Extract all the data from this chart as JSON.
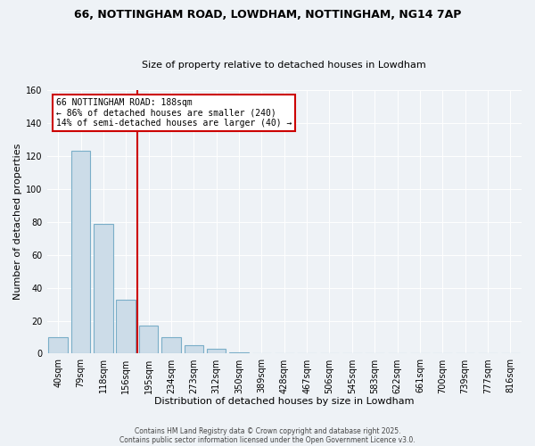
{
  "title1": "66, NOTTINGHAM ROAD, LOWDHAM, NOTTINGHAM, NG14 7AP",
  "title2": "Size of property relative to detached houses in Lowdham",
  "xlabel": "Distribution of detached houses by size in Lowdham",
  "ylabel": "Number of detached properties",
  "bar_labels": [
    "40sqm",
    "79sqm",
    "118sqm",
    "156sqm",
    "195sqm",
    "234sqm",
    "273sqm",
    "312sqm",
    "350sqm",
    "389sqm",
    "428sqm",
    "467sqm",
    "506sqm",
    "545sqm",
    "583sqm",
    "622sqm",
    "661sqm",
    "700sqm",
    "739sqm",
    "777sqm",
    "816sqm"
  ],
  "bar_heights": [
    10,
    123,
    79,
    33,
    17,
    10,
    5,
    3,
    1,
    0,
    0,
    0,
    0,
    0,
    0,
    0,
    0,
    0,
    0,
    0,
    0
  ],
  "bar_color": "#ccdce8",
  "bar_edge_color": "#7aaec8",
  "vline_x": 3.5,
  "vline_color": "#cc0000",
  "annotation_title": "66 NOTTINGHAM ROAD: 188sqm",
  "annotation_line1": "← 86% of detached houses are smaller (240)",
  "annotation_line2": "14% of semi-detached houses are larger (40) →",
  "annotation_box_facecolor": "#ffffff",
  "annotation_box_edgecolor": "#cc0000",
  "ylim": [
    0,
    160
  ],
  "yticks": [
    0,
    20,
    40,
    60,
    80,
    100,
    120,
    140,
    160
  ],
  "footnote1": "Contains HM Land Registry data © Crown copyright and database right 2025.",
  "footnote2": "Contains public sector information licensed under the Open Government Licence v3.0.",
  "bg_color": "#eef2f6",
  "plot_bg_color": "#eef2f6",
  "grid_color": "#ffffff",
  "title1_fontsize": 9,
  "title2_fontsize": 8,
  "xlabel_fontsize": 8,
  "ylabel_fontsize": 8,
  "tick_fontsize": 7,
  "ann_fontsize": 7,
  "footnote_fontsize": 5.5
}
